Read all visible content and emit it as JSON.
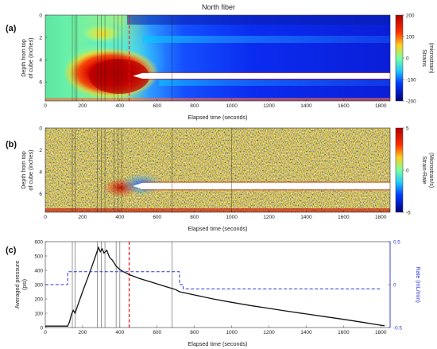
{
  "figure_title": "North fiber",
  "colors": {
    "axis": "#333333",
    "pressure_line": "#111111",
    "rate_line": "#2a34d6",
    "rate_axis": "#2a34d6",
    "event_line": "#e8141e",
    "marker_line": "#555555"
  },
  "chart_data": [
    {
      "panel_label": "(a)",
      "type": "heatmap",
      "xlabel": "Elapsed time (seconds)",
      "ylabel": "Depth from top of cube (inches)",
      "xlim": [
        0,
        1850
      ],
      "ylim": [
        7.7,
        0
      ],
      "xticks": [
        0,
        200,
        400,
        600,
        800,
        1000,
        1200,
        1400,
        1600,
        1800
      ],
      "yticks": [
        0,
        2,
        4,
        6
      ],
      "colorbar": {
        "label": "Strains (microstrain)",
        "range": [
          -200,
          200
        ],
        "ticks": [
          200,
          100,
          0,
          -100,
          -200
        ]
      },
      "event_line_time": 450,
      "marker_times": [
        145,
        160,
        170,
        280,
        300,
        320,
        370,
        390,
        410,
        680
      ],
      "features": {
        "high_strain_region": {
          "time_range": [
            280,
            500
          ],
          "depth_range": [
            3.2,
            6.6
          ],
          "strain": 200
        },
        "fracture_band_depth": [
          5.2,
          5.7
        ],
        "fracture_band_start_time": 470
      }
    },
    {
      "panel_label": "(b)",
      "type": "heatmap",
      "xlabel": "Elapsed time (seconds)",
      "ylabel": "Depth from top of cube (inches)",
      "xlim": [
        0,
        1850
      ],
      "ylim": [
        7.7,
        0
      ],
      "xticks": [
        0,
        200,
        400,
        600,
        800,
        1000,
        1200,
        1400,
        1600,
        1800
      ],
      "yticks": [
        0,
        2,
        4,
        6
      ],
      "colorbar": {
        "label": "Strain-Rate (Microstrain/s)",
        "range": [
          -5,
          5
        ],
        "ticks": [
          5,
          0,
          -5
        ]
      },
      "marker_times": [
        145,
        160,
        280,
        300,
        320,
        370,
        390,
        410,
        680,
        1000
      ],
      "features": {
        "fracture_band_depth": [
          5.0,
          5.6
        ],
        "fracture_band_start_time": 470
      }
    },
    {
      "panel_label": "(c)",
      "type": "line",
      "xlabel": "Elapsed time (seconds)",
      "ylabel": "Averaged pressure (psi)",
      "y2label": "Rate (mL/min)",
      "xlim": [
        0,
        1850
      ],
      "ylim": [
        0,
        600
      ],
      "y2lim": [
        -0.5,
        0.5
      ],
      "xticks": [
        0,
        200,
        400,
        600,
        800,
        1000,
        1200,
        1400,
        1600,
        1800
      ],
      "yticks": [
        0,
        100,
        200,
        300,
        400,
        500,
        600
      ],
      "y2ticks": [
        0.5,
        0,
        -0.5
      ],
      "event_line_time": 450,
      "marker_times": [
        145,
        160,
        280,
        300,
        320,
        380,
        400,
        680
      ],
      "series": [
        {
          "axis": "left",
          "x": [
            0,
            120,
            130,
            140,
            150,
            160,
            170,
            200,
            240,
            270,
            285,
            295,
            305,
            315,
            330,
            345,
            360,
            380,
            400,
            420,
            450,
            500,
            550,
            600,
            650,
            700,
            720,
            800,
            900,
            1000,
            1100,
            1200,
            1300,
            1400,
            1500,
            1600,
            1700,
            1780,
            1820
          ],
          "values": [
            10,
            10,
            40,
            90,
            120,
            100,
            140,
            250,
            390,
            500,
            560,
            530,
            550,
            520,
            540,
            490,
            470,
            430,
            405,
            390,
            370,
            345,
            325,
            305,
            285,
            265,
            250,
            228,
            200,
            176,
            154,
            134,
            114,
            95,
            76,
            57,
            37,
            20,
            12
          ]
        },
        {
          "axis": "right",
          "x": [
            0,
            120,
            120,
            720,
            720,
            740,
            740,
            1800
          ],
          "values": [
            0.0,
            0.0,
            0.15,
            0.15,
            0.0,
            0.0,
            -0.05,
            -0.05
          ]
        }
      ]
    }
  ]
}
